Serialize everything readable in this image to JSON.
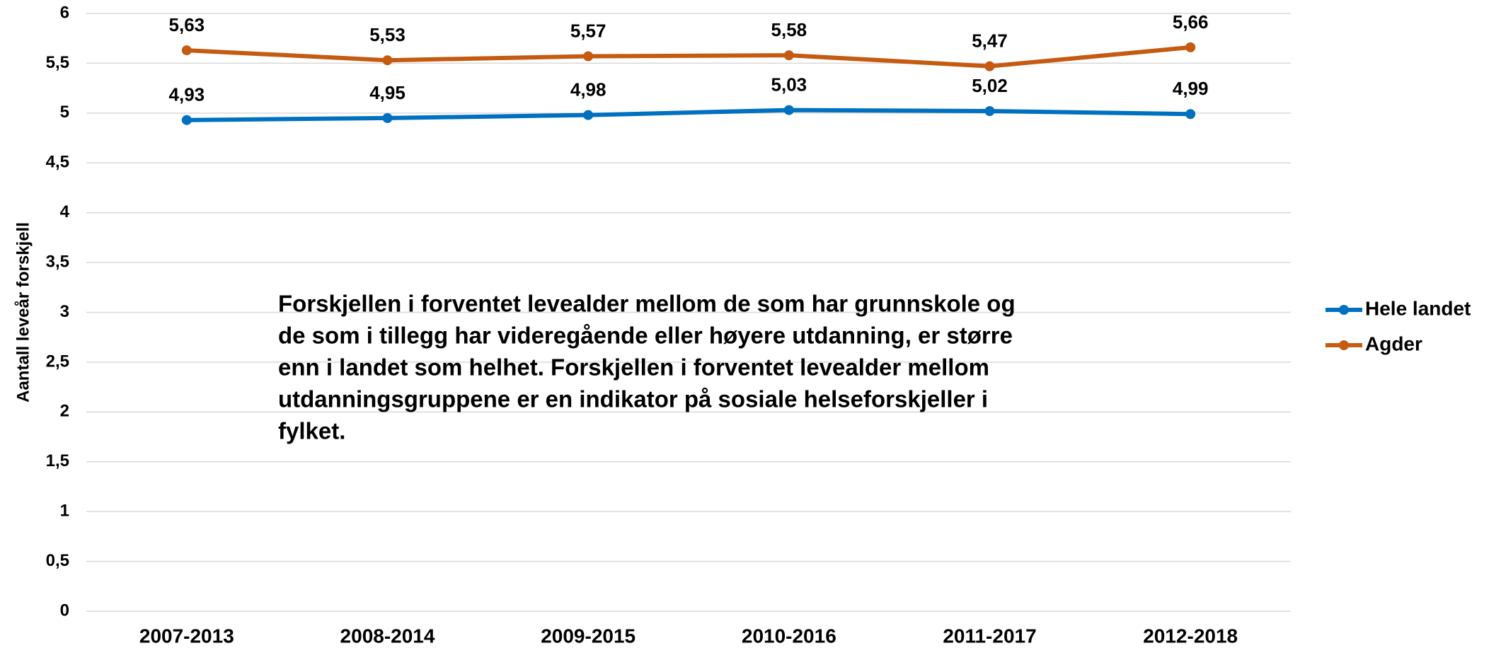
{
  "chart_data": {
    "type": "line",
    "y_label": "Aantall leveår forskjell",
    "categories": [
      "2007-2013",
      "2008-2014",
      "2009-2015",
      "2010-2016",
      "2011-2017",
      "2012-2018"
    ],
    "series": [
      {
        "name": "Hele landet",
        "color": "#0070c0",
        "values": [
          4.93,
          4.95,
          4.98,
          5.03,
          5.02,
          4.99
        ],
        "value_labels": [
          "4,93",
          "4,95",
          "4,98",
          "5,03",
          "5,02",
          "4,99"
        ]
      },
      {
        "name": "Agder",
        "color": "#c55a11",
        "values": [
          5.63,
          5.53,
          5.57,
          5.58,
          5.47,
          5.66
        ],
        "value_labels": [
          "5,63",
          "5,53",
          "5,57",
          "5,58",
          "5,47",
          "5,66"
        ]
      }
    ],
    "ylim": [
      0,
      6
    ],
    "yticks": [
      0,
      {
        "value": 0.5,
        "label": "0,5"
      },
      1,
      {
        "value": 1.5,
        "label": "1,5"
      },
      2,
      {
        "value": 2.5,
        "label": "2,5"
      },
      3,
      {
        "value": 3.5,
        "label": "3,5"
      },
      4,
      {
        "value": 4.5,
        "label": "4,5"
      },
      5,
      {
        "value": 5.5,
        "label": "5,5"
      },
      6
    ],
    "grid": true,
    "legend": "right",
    "annotation": [
      "Forskjellen i forventet levealder mellom de som har grunnskole og",
      "de som i tillegg har videregående eller høyere utdanning, er større",
      "enn i landet som helhet. Forskjellen i forventet levealder mellom",
      "utdanningsgruppene er en indikator på sosiale helseforskjeller i",
      "fylket."
    ]
  }
}
